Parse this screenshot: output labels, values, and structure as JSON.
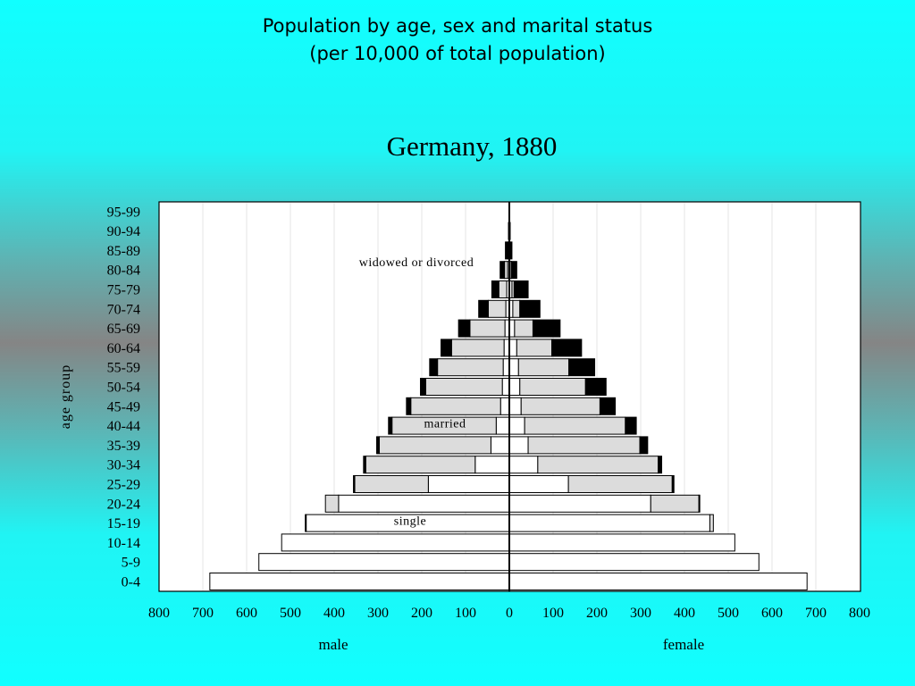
{
  "title": {
    "line1": "Population by age, sex and marital status",
    "line2": "(per 10,000 of total population)"
  },
  "chart_data": {
    "type": "bar",
    "subtitle": "Germany, 1880",
    "ylabel": "age group",
    "left_label": "male",
    "right_label": "female",
    "xlim": [
      0,
      800
    ],
    "x_ticks_left": [
      "800",
      "700",
      "600",
      "500",
      "400",
      "300",
      "200",
      "100",
      "0"
    ],
    "x_ticks_right": [
      "0",
      "100",
      "200",
      "300",
      "400",
      "500",
      "600",
      "700",
      "800"
    ],
    "grid": true,
    "categories": [
      "0-4",
      "5-9",
      "10-14",
      "15-19",
      "20-24",
      "25-29",
      "30-34",
      "35-39",
      "40-44",
      "45-49",
      "50-54",
      "55-59",
      "60-64",
      "65-69",
      "70-74",
      "75-79",
      "80-84",
      "85-89",
      "90-94",
      "95-99"
    ],
    "colors": {
      "single": "#ffffff",
      "married": "#dcdcdc",
      "widowed_or_divorced": "#000000"
    },
    "annotations": [
      {
        "text": "single",
        "category": "15-19",
        "side": "male"
      },
      {
        "text": "married",
        "category": "40-44",
        "side": "male"
      },
      {
        "text": "widowed or divorced",
        "category": "80-84",
        "side": "male"
      }
    ],
    "male": {
      "single": [
        684,
        572,
        520,
        464,
        390,
        185,
        78,
        42,
        30,
        20,
        16,
        14,
        12,
        10,
        8,
        6,
        4,
        2,
        1,
        0
      ],
      "married": [
        0,
        0,
        0,
        2,
        30,
        168,
        250,
        255,
        238,
        205,
        175,
        150,
        120,
        80,
        40,
        18,
        7,
        2,
        0,
        0
      ],
      "widowed_or_divorced": [
        0,
        0,
        0,
        0,
        0,
        3,
        5,
        6,
        8,
        10,
        12,
        18,
        24,
        26,
        22,
        16,
        10,
        5,
        1,
        0
      ]
    },
    "female": {
      "single": [
        680,
        570,
        515,
        458,
        323,
        135,
        65,
        43,
        35,
        27,
        24,
        21,
        17,
        12,
        8,
        6,
        4,
        2,
        1,
        0
      ],
      "married": [
        0,
        0,
        0,
        8,
        110,
        237,
        275,
        255,
        230,
        180,
        150,
        115,
        80,
        42,
        16,
        5,
        1,
        0,
        0,
        0
      ],
      "widowed_or_divorced": [
        0,
        0,
        0,
        0,
        2,
        4,
        8,
        18,
        25,
        35,
        47,
        59,
        68,
        62,
        46,
        32,
        12,
        4,
        1,
        0
      ]
    }
  }
}
